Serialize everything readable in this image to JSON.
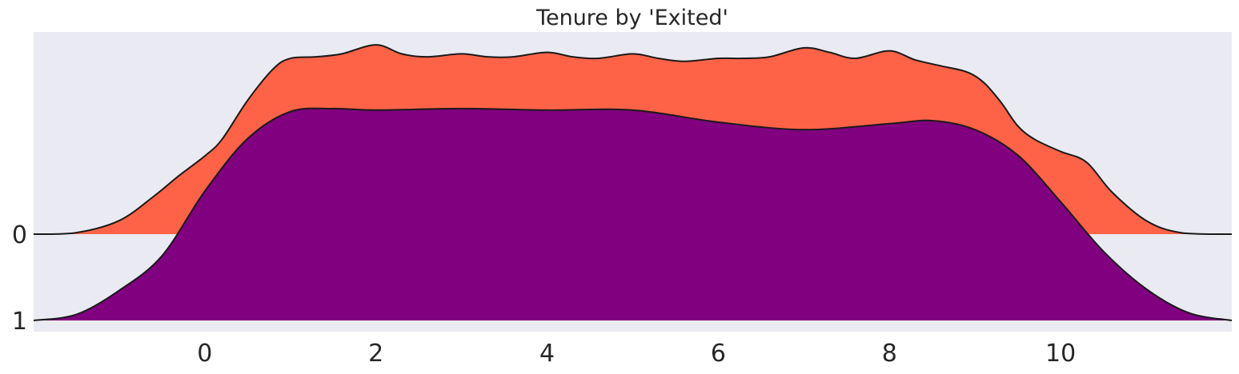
{
  "chart_data": {
    "type": "area",
    "title": "Tenure by 'Exited'",
    "xlabel": "",
    "ylabel": "",
    "xlim": [
      -2.0,
      12.0
    ],
    "x_ticks": [
      0,
      2,
      4,
      6,
      8,
      10
    ],
    "x_tick_labels": [
      "0",
      "2",
      "4",
      "6",
      "8",
      "10"
    ],
    "y_tick_labels": [
      "0",
      "1"
    ],
    "grid": false,
    "legend": "none",
    "background_color": "#eaeaf2",
    "series": [
      {
        "name": "0",
        "color": "#ff6347",
        "x": [
          -2.0,
          -1.5,
          -1.0,
          -0.6,
          -0.3,
          0.0,
          0.2,
          0.5,
          0.8,
          1.0,
          1.3,
          1.6,
          2.0,
          2.3,
          2.6,
          3.0,
          3.3,
          3.6,
          4.0,
          4.3,
          4.6,
          5.0,
          5.3,
          5.6,
          6.0,
          6.3,
          6.6,
          7.0,
          7.3,
          7.6,
          8.0,
          8.3,
          8.6,
          8.9,
          9.1,
          9.3,
          9.5,
          9.7,
          10.0,
          10.3,
          10.6,
          11.0,
          11.4,
          12.0
        ],
        "values": [
          0.0,
          0.01,
          0.09,
          0.25,
          0.39,
          0.52,
          0.63,
          0.89,
          1.1,
          1.17,
          1.18,
          1.2,
          1.26,
          1.2,
          1.18,
          1.2,
          1.18,
          1.18,
          1.21,
          1.18,
          1.17,
          1.2,
          1.17,
          1.15,
          1.17,
          1.17,
          1.18,
          1.24,
          1.21,
          1.17,
          1.22,
          1.16,
          1.12,
          1.08,
          1.01,
          0.88,
          0.72,
          0.63,
          0.55,
          0.48,
          0.28,
          0.09,
          0.01,
          0.0
        ]
      },
      {
        "name": "1",
        "color": "#800080",
        "x": [
          -2.0,
          -1.5,
          -1.0,
          -0.5,
          0.0,
          0.5,
          1.0,
          1.5,
          2.0,
          3.0,
          4.0,
          5.0,
          6.0,
          7.0,
          8.0,
          8.5,
          9.0,
          9.5,
          10.0,
          10.5,
          11.0,
          11.5,
          12.0
        ],
        "values": [
          0.0,
          0.04,
          0.2,
          0.43,
          0.86,
          1.21,
          1.39,
          1.41,
          1.4,
          1.41,
          1.4,
          1.4,
          1.32,
          1.27,
          1.31,
          1.33,
          1.27,
          1.1,
          0.79,
          0.46,
          0.21,
          0.05,
          0.0
        ]
      }
    ]
  }
}
